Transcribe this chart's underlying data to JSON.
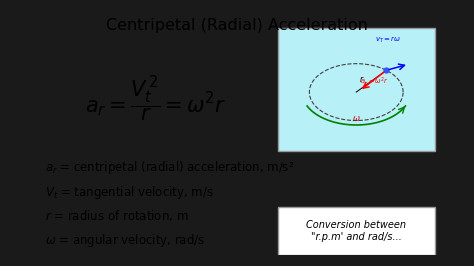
{
  "title": "Centripetal (Radial) Acceleration",
  "title_fontsize": 11.5,
  "slide_bg": "#f5f5f5",
  "outer_bg": "#1a1a1a",
  "definitions": [
    "$a_r$ = centripetal (radial) acceleration, m/s²",
    "$V_t$ = tangential velocity, m/s",
    "$r$ = radius of rotation, m",
    "$\\omega$ = angular velocity, rad/s"
  ],
  "conversion_text": "Conversion between\n\"r.p.m' and rad/s...",
  "def_fontsize": 8.5,
  "eq_fontsize": 15,
  "conv_fontsize": 7.0,
  "diagram_bg": "#b8f0f8",
  "diagram_border": "#999999",
  "conv_border": "#999999"
}
